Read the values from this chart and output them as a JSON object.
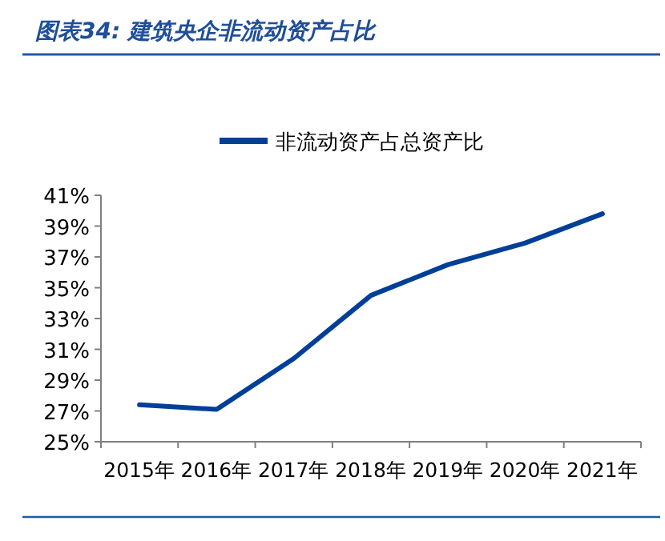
{
  "chart_data": {
    "type": "line",
    "title": "图表34: 建筑央企非流动资产占比",
    "categories": [
      "2015年",
      "2016年",
      "2017年",
      "2018年",
      "2019年",
      "2020年",
      "2021年"
    ],
    "series": [
      {
        "name": "非流动资产占总资产比",
        "color": "#003f98",
        "values": [
          27.4,
          27.1,
          30.4,
          34.5,
          36.5,
          37.9,
          39.8
        ]
      }
    ],
    "ylim": [
      25,
      41
    ],
    "yticks": [
      {
        "value": 25,
        "label": "25%"
      },
      {
        "value": 27,
        "label": "27%"
      },
      {
        "value": 29,
        "label": "29%"
      },
      {
        "value": 31,
        "label": "31%"
      },
      {
        "value": 33,
        "label": "33%"
      },
      {
        "value": 35,
        "label": "35%"
      },
      {
        "value": 37,
        "label": "37%"
      },
      {
        "value": 39,
        "label": "39%"
      },
      {
        "value": 41,
        "label": "41%"
      }
    ],
    "legend": "top",
    "grid": false,
    "marker": "none",
    "line_style": "solid"
  }
}
